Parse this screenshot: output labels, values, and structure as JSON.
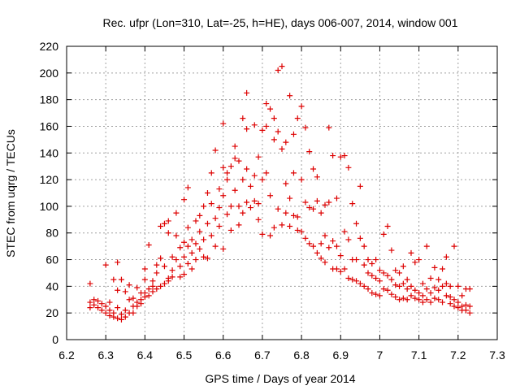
{
  "chart_data": {
    "type": "scatter",
    "title": "Rec. ufpr (Lon=310, Lat=-25, h=HE), days 006-007, 2014, window 001",
    "xlabel": "GPS time / Days of year 2014",
    "ylabel": "STEC from uqrg / TECUs",
    "xlim": [
      6.2,
      7.3
    ],
    "ylim": [
      0,
      220
    ],
    "xticks": [
      "6.2",
      "6.3",
      "6.4",
      "6.5",
      "6.6",
      "6.7",
      "6.8",
      "6.9",
      "7",
      "7.1",
      "7.2",
      "7.3"
    ],
    "yticks": [
      "0",
      "20",
      "40",
      "60",
      "80",
      "100",
      "120",
      "140",
      "160",
      "180",
      "200",
      "220"
    ],
    "grid": true,
    "marker": "plus",
    "color": "#dd0000",
    "points": [
      [
        6.26,
        42
      ],
      [
        6.26,
        28
      ],
      [
        6.26,
        24
      ],
      [
        6.27,
        30
      ],
      [
        6.27,
        26
      ],
      [
        6.28,
        29
      ],
      [
        6.28,
        24
      ],
      [
        6.29,
        22
      ],
      [
        6.29,
        27
      ],
      [
        6.3,
        25
      ],
      [
        6.3,
        56
      ],
      [
        6.3,
        20
      ],
      [
        6.31,
        28
      ],
      [
        6.31,
        22
      ],
      [
        6.31,
        18
      ],
      [
        6.32,
        45
      ],
      [
        6.32,
        20
      ],
      [
        6.32,
        17
      ],
      [
        6.33,
        24
      ],
      [
        6.33,
        16
      ],
      [
        6.33,
        58
      ],
      [
        6.33,
        37
      ],
      [
        6.34,
        15
      ],
      [
        6.34,
        19
      ],
      [
        6.34,
        45
      ],
      [
        6.35,
        17
      ],
      [
        6.35,
        22
      ],
      [
        6.35,
        36
      ],
      [
        6.36,
        20
      ],
      [
        6.36,
        30
      ],
      [
        6.36,
        41
      ],
      [
        6.37,
        25
      ],
      [
        6.37,
        20
      ],
      [
        6.37,
        31
      ],
      [
        6.38,
        28
      ],
      [
        6.38,
        25
      ],
      [
        6.38,
        39
      ],
      [
        6.39,
        35
      ],
      [
        6.39,
        30
      ],
      [
        6.39,
        27
      ],
      [
        6.4,
        45
      ],
      [
        6.4,
        35
      ],
      [
        6.4,
        32
      ],
      [
        6.4,
        53
      ],
      [
        6.41,
        38
      ],
      [
        6.41,
        33
      ],
      [
        6.41,
        71
      ],
      [
        6.42,
        40
      ],
      [
        6.42,
        36
      ],
      [
        6.42,
        44
      ],
      [
        6.43,
        50
      ],
      [
        6.43,
        38
      ],
      [
        6.43,
        56
      ],
      [
        6.44,
        40
      ],
      [
        6.44,
        85
      ],
      [
        6.44,
        61
      ],
      [
        6.45,
        87
      ],
      [
        6.45,
        42
      ],
      [
        6.45,
        55
      ],
      [
        6.46,
        46
      ],
      [
        6.46,
        44
      ],
      [
        6.46,
        80
      ],
      [
        6.46,
        89
      ],
      [
        6.47,
        62
      ],
      [
        6.47,
        47
      ],
      [
        6.47,
        52
      ],
      [
        6.48,
        60
      ],
      [
        6.48,
        95
      ],
      [
        6.48,
        78
      ],
      [
        6.49,
        47
      ],
      [
        6.49,
        55
      ],
      [
        6.49,
        69
      ],
      [
        6.5,
        105
      ],
      [
        6.5,
        73
      ],
      [
        6.5,
        62
      ],
      [
        6.5,
        49
      ],
      [
        6.51,
        114
      ],
      [
        6.51,
        84
      ],
      [
        6.51,
        70
      ],
      [
        6.51,
        57
      ],
      [
        6.52,
        75
      ],
      [
        6.52,
        65
      ],
      [
        6.52,
        53
      ],
      [
        6.53,
        89
      ],
      [
        6.53,
        72
      ],
      [
        6.53,
        60
      ],
      [
        6.54,
        93
      ],
      [
        6.54,
        81
      ],
      [
        6.54,
        68
      ],
      [
        6.55,
        100
      ],
      [
        6.55,
        75
      ],
      [
        6.55,
        62
      ],
      [
        6.56,
        110
      ],
      [
        6.56,
        87
      ],
      [
        6.56,
        61
      ],
      [
        6.57,
        125
      ],
      [
        6.57,
        102
      ],
      [
        6.57,
        78
      ],
      [
        6.58,
        142
      ],
      [
        6.58,
        91
      ],
      [
        6.58,
        70
      ],
      [
        6.59,
        113
      ],
      [
        6.59,
        99
      ],
      [
        6.59,
        85
      ],
      [
        6.6,
        162
      ],
      [
        6.6,
        129
      ],
      [
        6.6,
        108
      ],
      [
        6.6,
        68
      ],
      [
        6.61,
        125
      ],
      [
        6.61,
        120
      ],
      [
        6.61,
        94
      ],
      [
        6.62,
        130
      ],
      [
        6.62,
        100
      ],
      [
        6.62,
        82
      ],
      [
        6.63,
        145
      ],
      [
        6.63,
        136
      ],
      [
        6.63,
        112
      ],
      [
        6.64,
        134
      ],
      [
        6.64,
        100
      ],
      [
        6.64,
        86
      ],
      [
        6.65,
        166
      ],
      [
        6.65,
        120
      ],
      [
        6.65,
        95
      ],
      [
        6.66,
        158
      ],
      [
        6.66,
        128
      ],
      [
        6.66,
        103
      ],
      [
        6.66,
        185
      ],
      [
        6.67,
        115
      ],
      [
        6.67,
        99
      ],
      [
        6.68,
        161
      ],
      [
        6.68,
        123
      ],
      [
        6.68,
        104
      ],
      [
        6.69,
        137
      ],
      [
        6.69,
        102
      ],
      [
        6.69,
        90
      ],
      [
        6.7,
        157
      ],
      [
        6.7,
        120
      ],
      [
        6.7,
        79
      ],
      [
        6.71,
        177
      ],
      [
        6.71,
        160
      ],
      [
        6.71,
        125
      ],
      [
        6.72,
        173
      ],
      [
        6.72,
        108
      ],
      [
        6.72,
        78
      ],
      [
        6.73,
        166
      ],
      [
        6.73,
        150
      ],
      [
        6.73,
        84
      ],
      [
        6.74,
        202
      ],
      [
        6.74,
        156
      ],
      [
        6.74,
        98
      ],
      [
        6.75,
        205
      ],
      [
        6.75,
        143
      ],
      [
        6.75,
        86
      ],
      [
        6.76,
        117
      ],
      [
        6.76,
        95
      ],
      [
        6.76,
        148
      ],
      [
        6.77,
        183
      ],
      [
        6.77,
        106
      ],
      [
        6.77,
        85
      ],
      [
        6.78,
        154
      ],
      [
        6.78,
        125
      ],
      [
        6.78,
        93
      ],
      [
        6.79,
        166
      ],
      [
        6.79,
        92
      ],
      [
        6.79,
        82
      ],
      [
        6.8,
        175
      ],
      [
        6.8,
        120
      ],
      [
        6.8,
        81
      ],
      [
        6.81,
        159
      ],
      [
        6.81,
        103
      ],
      [
        6.81,
        76
      ],
      [
        6.82,
        141
      ],
      [
        6.82,
        99
      ],
      [
        6.82,
        72
      ],
      [
        6.83,
        128
      ],
      [
        6.83,
        98
      ],
      [
        6.83,
        70
      ],
      [
        6.84,
        122
      ],
      [
        6.84,
        104
      ],
      [
        6.84,
        65
      ],
      [
        6.85,
        95
      ],
      [
        6.85,
        72
      ],
      [
        6.85,
        61
      ],
      [
        6.86,
        101
      ],
      [
        6.86,
        78
      ],
      [
        6.86,
        58
      ],
      [
        6.87,
        159
      ],
      [
        6.87,
        103
      ],
      [
        6.87,
        69
      ],
      [
        6.88,
        138
      ],
      [
        6.88,
        74
      ],
      [
        6.88,
        53
      ],
      [
        6.89,
        106
      ],
      [
        6.89,
        70
      ],
      [
        6.89,
        53
      ],
      [
        6.9,
        137
      ],
      [
        6.9,
        63
      ],
      [
        6.9,
        51
      ],
      [
        6.91,
        138
      ],
      [
        6.91,
        81
      ],
      [
        6.91,
        53
      ],
      [
        6.92,
        129
      ],
      [
        6.92,
        75
      ],
      [
        6.92,
        46
      ],
      [
        6.93,
        102
      ],
      [
        6.93,
        60
      ],
      [
        6.93,
        45
      ],
      [
        6.94,
        87
      ],
      [
        6.94,
        60
      ],
      [
        6.94,
        44
      ],
      [
        6.95,
        115
      ],
      [
        6.95,
        76
      ],
      [
        6.95,
        42
      ],
      [
        6.96,
        70
      ],
      [
        6.96,
        56
      ],
      [
        6.96,
        40
      ],
      [
        6.97,
        60
      ],
      [
        6.97,
        50
      ],
      [
        6.97,
        38
      ],
      [
        6.98,
        57
      ],
      [
        6.98,
        48
      ],
      [
        6.98,
        35
      ],
      [
        6.99,
        60
      ],
      [
        6.99,
        46
      ],
      [
        6.99,
        34
      ],
      [
        7.0,
        52
      ],
      [
        7.0,
        44
      ],
      [
        7.0,
        33
      ],
      [
        7.01,
        79
      ],
      [
        7.01,
        50
      ],
      [
        7.01,
        38
      ],
      [
        7.02,
        85
      ],
      [
        7.02,
        48
      ],
      [
        7.02,
        37
      ],
      [
        7.03,
        67
      ],
      [
        7.03,
        45
      ],
      [
        7.03,
        34
      ],
      [
        7.04,
        52
      ],
      [
        7.04,
        41
      ],
      [
        7.04,
        32
      ],
      [
        7.05,
        50
      ],
      [
        7.05,
        40
      ],
      [
        7.05,
        30
      ],
      [
        7.06,
        55
      ],
      [
        7.06,
        42
      ],
      [
        7.06,
        31
      ],
      [
        7.07,
        45
      ],
      [
        7.07,
        38
      ],
      [
        7.07,
        30
      ],
      [
        7.08,
        65
      ],
      [
        7.08,
        40
      ],
      [
        7.08,
        33
      ],
      [
        7.09,
        58
      ],
      [
        7.09,
        37
      ],
      [
        7.09,
        31
      ],
      [
        7.1,
        60
      ],
      [
        7.1,
        35
      ],
      [
        7.1,
        30
      ],
      [
        7.11,
        42
      ],
      [
        7.11,
        33
      ],
      [
        7.11,
        28
      ],
      [
        7.12,
        70
      ],
      [
        7.12,
        38
      ],
      [
        7.12,
        30
      ],
      [
        7.13,
        46
      ],
      [
        7.13,
        35
      ],
      [
        7.13,
        28
      ],
      [
        7.14,
        54
      ],
      [
        7.14,
        39
      ],
      [
        7.14,
        31
      ],
      [
        7.15,
        45
      ],
      [
        7.15,
        37
      ],
      [
        7.15,
        30
      ],
      [
        7.16,
        53
      ],
      [
        7.16,
        40
      ],
      [
        7.16,
        28
      ],
      [
        7.17,
        62
      ],
      [
        7.17,
        42
      ],
      [
        7.17,
        33
      ],
      [
        7.18,
        40
      ],
      [
        7.18,
        32
      ],
      [
        7.18,
        27
      ],
      [
        7.19,
        70
      ],
      [
        7.19,
        30
      ],
      [
        7.19,
        25
      ],
      [
        7.2,
        40
      ],
      [
        7.2,
        28
      ],
      [
        7.2,
        24
      ],
      [
        7.21,
        33
      ],
      [
        7.21,
        25
      ],
      [
        7.21,
        22
      ],
      [
        7.22,
        38
      ],
      [
        7.22,
        26
      ],
      [
        7.22,
        22
      ],
      [
        7.23,
        38
      ],
      [
        7.23,
        25
      ],
      [
        7.23,
        20
      ]
    ]
  }
}
